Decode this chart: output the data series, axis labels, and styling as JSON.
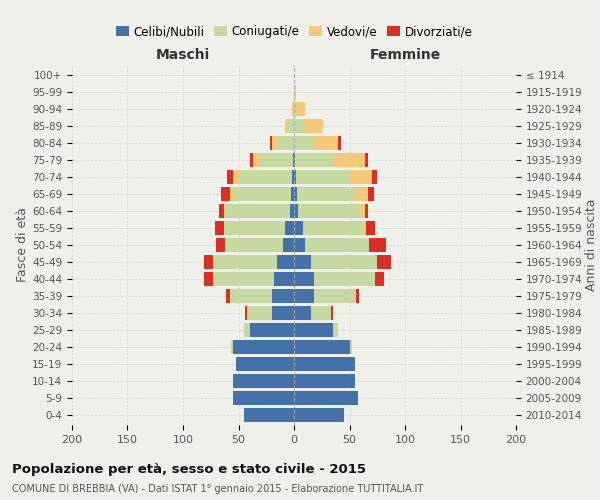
{
  "age_groups": [
    "0-4",
    "5-9",
    "10-14",
    "15-19",
    "20-24",
    "25-29",
    "30-34",
    "35-39",
    "40-44",
    "45-49",
    "50-54",
    "55-59",
    "60-64",
    "65-69",
    "70-74",
    "75-79",
    "80-84",
    "85-89",
    "90-94",
    "95-99",
    "100+"
  ],
  "birth_years": [
    "2010-2014",
    "2005-2009",
    "2000-2004",
    "1995-1999",
    "1990-1994",
    "1985-1989",
    "1980-1984",
    "1975-1979",
    "1970-1974",
    "1965-1969",
    "1960-1964",
    "1955-1959",
    "1950-1954",
    "1945-1949",
    "1940-1944",
    "1935-1939",
    "1930-1934",
    "1925-1929",
    "1920-1924",
    "1915-1919",
    "≤ 1914"
  ],
  "males": {
    "celibi": [
      45,
      55,
      55,
      52,
      55,
      40,
      20,
      20,
      18,
      15,
      10,
      8,
      4,
      3,
      2,
      1,
      0,
      0,
      0,
      0,
      0
    ],
    "coniugati": [
      0,
      0,
      0,
      0,
      2,
      5,
      22,
      38,
      55,
      58,
      52,
      55,
      58,
      52,
      48,
      30,
      15,
      5,
      1,
      0,
      0
    ],
    "vedovi": [
      0,
      0,
      0,
      0,
      0,
      0,
      0,
      0,
      0,
      0,
      0,
      0,
      1,
      3,
      5,
      6,
      5,
      3,
      1,
      0,
      0
    ],
    "divorziati": [
      0,
      0,
      0,
      0,
      0,
      0,
      2,
      3,
      8,
      8,
      8,
      8,
      5,
      8,
      5,
      3,
      2,
      0,
      0,
      0,
      0
    ]
  },
  "females": {
    "nubili": [
      45,
      58,
      55,
      55,
      50,
      35,
      15,
      18,
      18,
      15,
      10,
      8,
      4,
      3,
      2,
      1,
      0,
      0,
      0,
      0,
      0
    ],
    "coniugate": [
      0,
      0,
      0,
      0,
      2,
      5,
      18,
      38,
      55,
      60,
      58,
      55,
      55,
      52,
      48,
      35,
      18,
      8,
      2,
      0,
      0
    ],
    "vedove": [
      0,
      0,
      0,
      0,
      0,
      0,
      0,
      0,
      0,
      0,
      0,
      2,
      5,
      12,
      20,
      28,
      22,
      18,
      8,
      2,
      0
    ],
    "divorziate": [
      0,
      0,
      0,
      0,
      0,
      0,
      2,
      3,
      8,
      12,
      15,
      8,
      3,
      5,
      5,
      3,
      2,
      0,
      0,
      0,
      0
    ]
  },
  "colors": {
    "celibi": "#4472a8",
    "coniugati": "#c5d9a0",
    "vedovi": "#f5c97a",
    "divorziati": "#d93025"
  },
  "xlim": 200,
  "title": "Popolazione per età, sesso e stato civile - 2015",
  "subtitle": "COMUNE DI BREBBIA (VA) - Dati ISTAT 1° gennaio 2015 - Elaborazione TUTTITALIA.IT",
  "ylabel_left": "Fasce di età",
  "ylabel_right": "Anni di nascita",
  "xlabel_left": "Maschi",
  "xlabel_right": "Femmine",
  "bg_color": "#f0f0eb",
  "legend_labels": [
    "Celibi/Nubili",
    "Coniugati/e",
    "Vedovi/e",
    "Divorziati/e"
  ]
}
